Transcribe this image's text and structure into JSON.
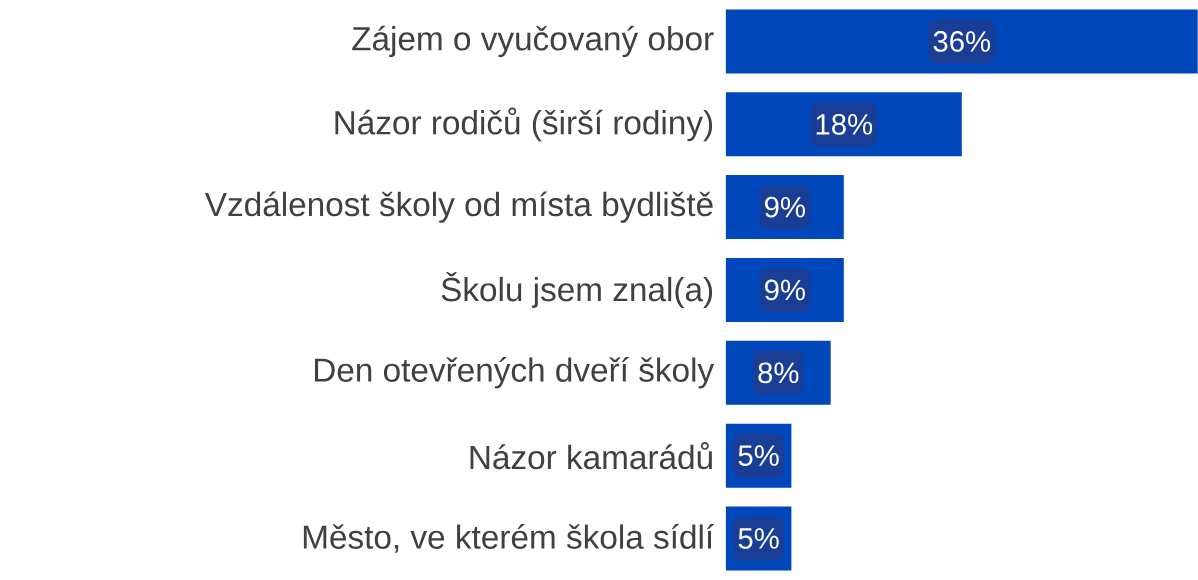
{
  "chart_data": {
    "type": "bar",
    "orientation": "horizontal",
    "categories": [
      "Zájem o vyučovaný obor",
      "Názor rodičů (širší rodiny)",
      "Vzdálenost školy od místa bydliště",
      "Školu jsem znal(a)",
      "Den otevřených dveří školy",
      "Názor kamarádů",
      "Město, ve kterém škola sídlí"
    ],
    "values": [
      36,
      18,
      9,
      9,
      8,
      5,
      5
    ],
    "value_labels": [
      "36%",
      "18%",
      "9%",
      "9%",
      "8%",
      "5%",
      "5%"
    ],
    "color": "#0047bb"
  }
}
